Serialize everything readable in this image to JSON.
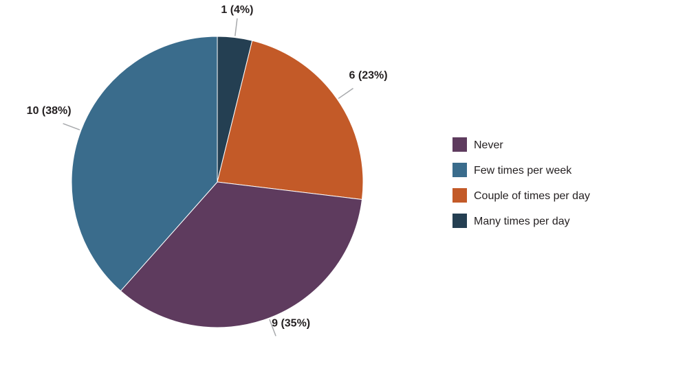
{
  "chart_data": {
    "type": "pie",
    "title": "",
    "legend_position": "right",
    "slices": [
      {
        "name": "Many times per day",
        "value": 1,
        "percent": 4,
        "label": "1 (4%)",
        "color": "#243f52"
      },
      {
        "name": "Couple of times per day",
        "value": 6,
        "percent": 23,
        "label": "6 (23%)",
        "color": "#c35a28"
      },
      {
        "name": "Never",
        "value": 9,
        "percent": 35,
        "label": "9 (35%)",
        "color": "#5e3b5e"
      },
      {
        "name": "Few times per week",
        "value": 10,
        "percent": 38,
        "label": "10 (38%)",
        "color": "#3a6c8c"
      }
    ],
    "legend": [
      {
        "name": "Never",
        "color": "#5e3b5e"
      },
      {
        "name": "Few times per week",
        "color": "#3a6c8c"
      },
      {
        "name": "Couple of times per day",
        "color": "#c35a28"
      },
      {
        "name": "Many times per day",
        "color": "#243f52"
      }
    ]
  }
}
